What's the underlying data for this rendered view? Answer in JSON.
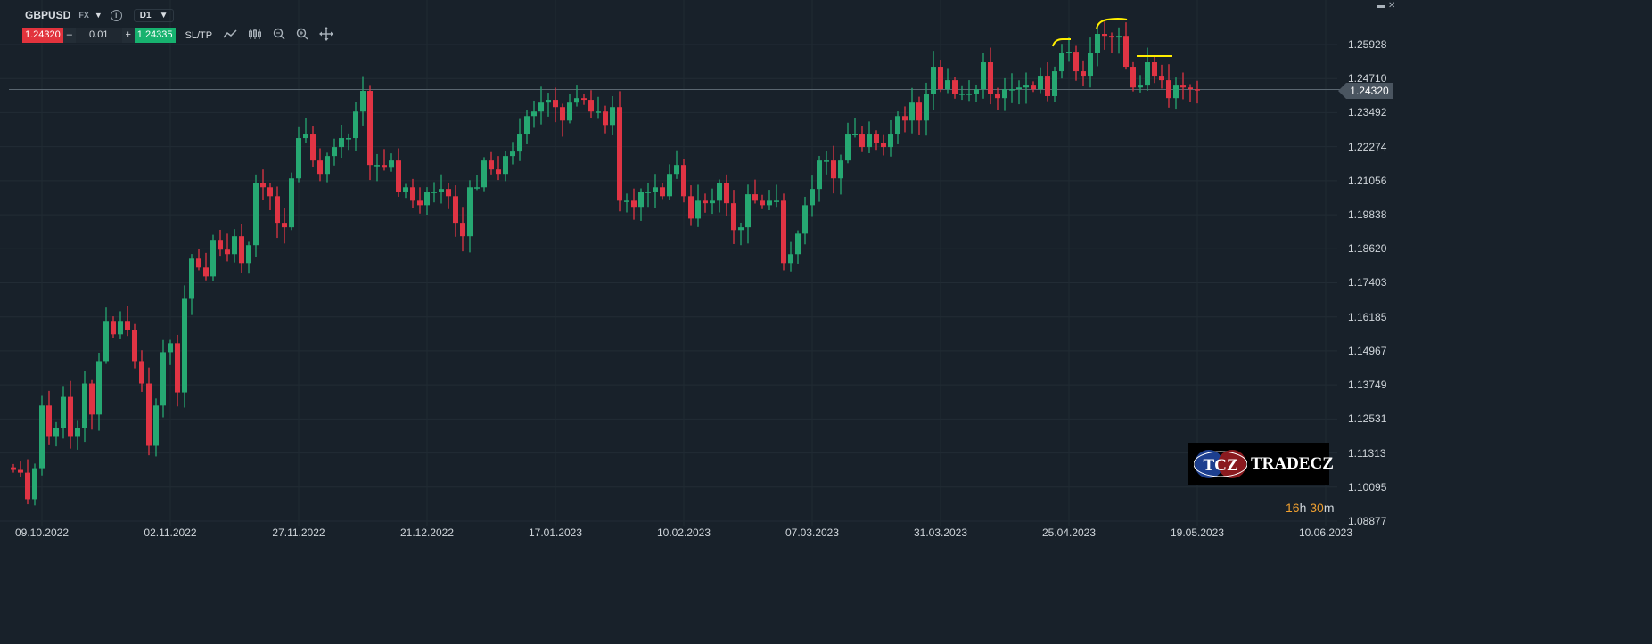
{
  "header": {
    "symbol": "GBPUSD",
    "market": "FX",
    "timeframe": "D1",
    "sell_price": "1.24320",
    "quantity": "0.01",
    "buy_price": "1.24335",
    "sltp_label": "SL/TP",
    "minus": "–",
    "plus": "+",
    "info": "i"
  },
  "window_controls": {
    "minimize": "▬",
    "close": "✕"
  },
  "countdown": {
    "hours": "16",
    "h": "h",
    "minutes": "30",
    "m": "m"
  },
  "logo": {
    "short": "TCZ",
    "name": "TRADECZ"
  },
  "colors": {
    "bull": "#26a872",
    "bear": "#e03444",
    "background": "#18212a",
    "annotation": "#ffee00",
    "price_line": "#5a6670"
  },
  "chart_data": {
    "type": "candlestick",
    "title": "GBPUSD D1",
    "current_price": 1.2432,
    "current_price_label": "1.24320",
    "first_open": 1.108,
    "ylim": [
      1.08877,
      1.25928
    ],
    "yticks": [
      "1.25928",
      "1.24710",
      "1.23492",
      "1.22274",
      "1.21056",
      "1.19838",
      "1.18620",
      "1.17403",
      "1.16185",
      "1.14967",
      "1.13749",
      "1.12531",
      "1.11313",
      "1.10095",
      "1.08877"
    ],
    "xticks": [
      "09.10.2022",
      "02.11.2022",
      "27.11.2022",
      "21.12.2022",
      "17.01.2023",
      "10.02.2023",
      "07.03.2023",
      "31.03.2023",
      "25.04.2023",
      "19.05.2023",
      "10.06.2023"
    ],
    "xtick_candle_index": [
      4,
      22,
      40,
      58,
      76,
      94,
      112,
      130,
      148,
      166,
      184
    ],
    "grid": true,
    "closes": [
      1.1071,
      1.1061,
      1.0966,
      1.1077,
      1.1301,
      1.1189,
      1.1221,
      1.1332,
      1.1189,
      1.1221,
      1.138,
      1.1269,
      1.146,
      1.1604,
      1.1556,
      1.1604,
      1.1572,
      1.146,
      1.138,
      1.1157,
      1.1301,
      1.1492,
      1.1524,
      1.1348,
      1.1683,
      1.1827,
      1.1795,
      1.1763,
      1.1891,
      1.1859,
      1.1843,
      1.1907,
      1.1811,
      1.1875,
      1.2098,
      1.2082,
      1.205,
      1.1955,
      1.1939,
      1.2114,
      1.2258,
      1.2274,
      1.2178,
      1.213,
      1.2194,
      1.2226,
      1.2258,
      1.2258,
      1.2353,
      1.2427,
      1.2162,
      1.2162,
      1.2152,
      1.2178,
      1.2066,
      1.2082,
      1.2034,
      1.2018,
      1.2066,
      1.2066,
      1.2076,
      1.205,
      1.1955,
      1.1907,
      1.2082,
      1.2082,
      1.2178,
      1.2146,
      1.213,
      1.2194,
      1.221,
      1.2274,
      1.2337,
      1.2353,
      1.2385,
      1.2395,
      1.2369,
      1.2321,
      1.2385,
      1.2401,
      1.2395,
      1.2353,
      1.2353,
      1.2305,
      1.2369,
      1.2034,
      1.2034,
      1.2012,
      1.2066,
      1.2066,
      1.2082,
      1.205,
      1.213,
      1.2162,
      1.205,
      1.197,
      1.2034,
      1.2025,
      1.2034,
      1.2098,
      1.2025,
      1.1929,
      1.1939,
      1.2057,
      1.2034,
      1.2018,
      1.2034,
      1.2034,
      1.1811,
      1.1843,
      1.1916,
      1.2018,
      1.2076,
      1.2178,
      1.2178,
      1.2114,
      1.2178,
      1.2274,
      1.2274,
      1.2226,
      1.2274,
      1.2242,
      1.2226,
      1.2274,
      1.2337,
      1.2321,
      1.2385,
      1.2321,
      1.2417,
      1.2513,
      1.2433,
      1.2465,
      1.2417,
      1.2417,
      1.2417,
      1.2433,
      1.2529,
      1.2417,
      1.2401,
      1.2433,
      1.2433,
      1.2439,
      1.2449,
      1.2433,
      1.2481,
      1.2408,
      1.2497,
      1.2561,
      1.2567,
      1.2497,
      1.2481,
      1.2561,
      1.2631,
      1.2624,
      1.2618,
      1.2624,
      1.2513,
      1.2439,
      1.2449,
      1.2529,
      1.2481,
      1.2465,
      1.2401,
      1.2449,
      1.2439,
      1.2433,
      1.2432
    ]
  }
}
